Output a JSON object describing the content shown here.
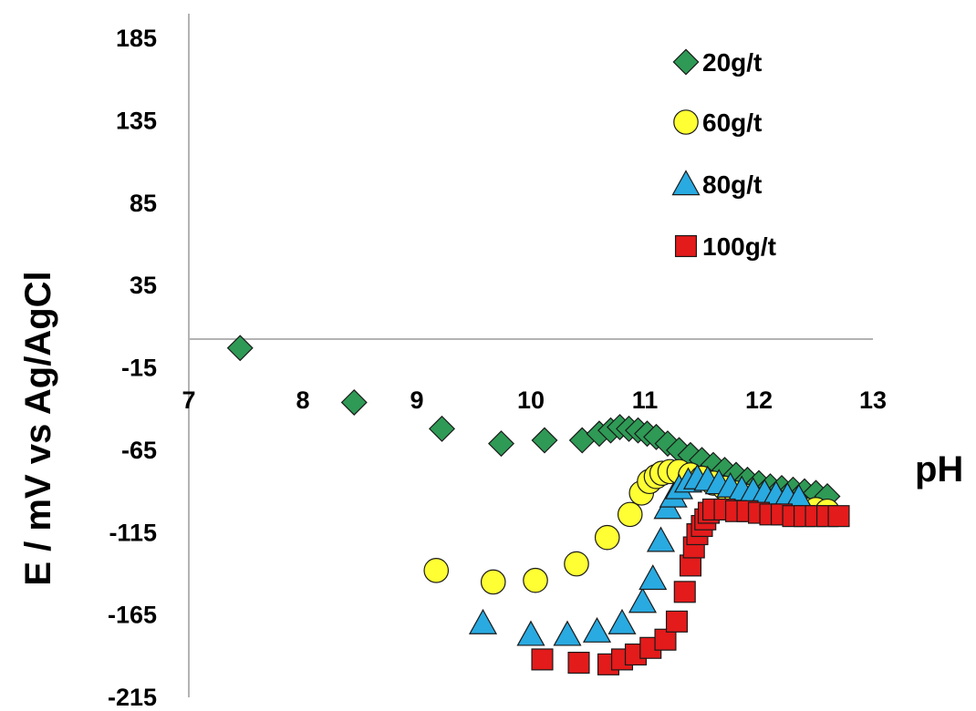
{
  "chart_data": {
    "type": "scatter",
    "xlabel": "pH",
    "ylabel": "E / mV vs Ag/AgCl",
    "xlim": [
      7,
      13
    ],
    "ylim": [
      -215,
      185
    ],
    "xticks": [
      "7",
      "8",
      "9",
      "10",
      "11",
      "12",
      "13"
    ],
    "yticks": [
      "185",
      "135",
      "85",
      "35",
      "-15",
      "-65",
      "-115",
      "-165",
      "-215"
    ],
    "legend_position": "top-right",
    "series": [
      {
        "name": "20g/t",
        "marker": "diamond",
        "color": "#2e9a55",
        "x": [
          7.45,
          8.45,
          9.22,
          9.74,
          10.12,
          10.45,
          10.6,
          10.7,
          10.78,
          10.86,
          10.94,
          11.02,
          11.1,
          11.2,
          11.3,
          11.4,
          11.5,
          11.6,
          11.7,
          11.8,
          11.9,
          12.0,
          12.1,
          12.2,
          12.3,
          12.4,
          12.5,
          12.6
        ],
        "y": [
          -3,
          -36,
          -52,
          -61,
          -59,
          -59,
          -55,
          -53,
          -51,
          -52,
          -53,
          -55,
          -57,
          -61,
          -65,
          -68,
          -71,
          -74,
          -77,
          -80,
          -83,
          -85,
          -87,
          -88,
          -89,
          -90,
          -91,
          -93
        ]
      },
      {
        "name": "60g/t",
        "marker": "circle",
        "color": "#ffff33",
        "x": [
          9.17,
          9.67,
          10.04,
          10.4,
          10.67,
          10.87,
          10.97,
          11.04,
          11.1,
          11.15,
          11.22,
          11.3,
          11.4,
          11.5,
          11.6,
          11.7,
          11.8,
          11.9,
          12.0,
          12.1,
          12.2,
          12.3,
          12.4,
          12.5,
          12.6
        ],
        "y": [
          -138,
          -145,
          -144,
          -134,
          -118,
          -104,
          -91,
          -84,
          -81,
          -79,
          -78,
          -78,
          -80,
          -82,
          -85,
          -88,
          -91,
          -93,
          -96,
          -98,
          -99,
          -100,
          -101,
          -101,
          -102
        ]
      },
      {
        "name": "80g/t",
        "marker": "triangle",
        "color": "#29aae1",
        "x": [
          9.58,
          10.0,
          10.32,
          10.58,
          10.8,
          10.98,
          11.07,
          11.14,
          11.2,
          11.25,
          11.3,
          11.38,
          11.46,
          11.55,
          11.65,
          11.75,
          11.85,
          11.95,
          12.05,
          12.15,
          12.25,
          12.35
        ],
        "y": [
          -170,
          -177,
          -177,
          -175,
          -170,
          -157,
          -143,
          -120,
          -100,
          -93,
          -88,
          -84,
          -82,
          -83,
          -85,
          -87,
          -89,
          -90,
          -91,
          -92,
          -93,
          -94
        ]
      },
      {
        "name": "100g/t",
        "marker": "square",
        "color": "#e31b1b",
        "x": [
          10.1,
          10.42,
          10.68,
          10.8,
          10.92,
          11.05,
          11.18,
          11.28,
          11.35,
          11.4,
          11.43,
          11.46,
          11.5,
          11.53,
          11.56,
          11.6,
          11.7,
          11.8,
          11.9,
          12.0,
          12.1,
          12.2,
          12.3,
          12.4,
          12.5,
          12.6,
          12.7
        ],
        "y": [
          -192,
          -194,
          -195,
          -192,
          -189,
          -185,
          -180,
          -169,
          -151,
          -135,
          -124,
          -116,
          -111,
          -107,
          -103,
          -101,
          -101,
          -102,
          -102,
          -103,
          -104,
          -104,
          -105,
          -105,
          -105,
          -105,
          -105
        ]
      }
    ]
  }
}
